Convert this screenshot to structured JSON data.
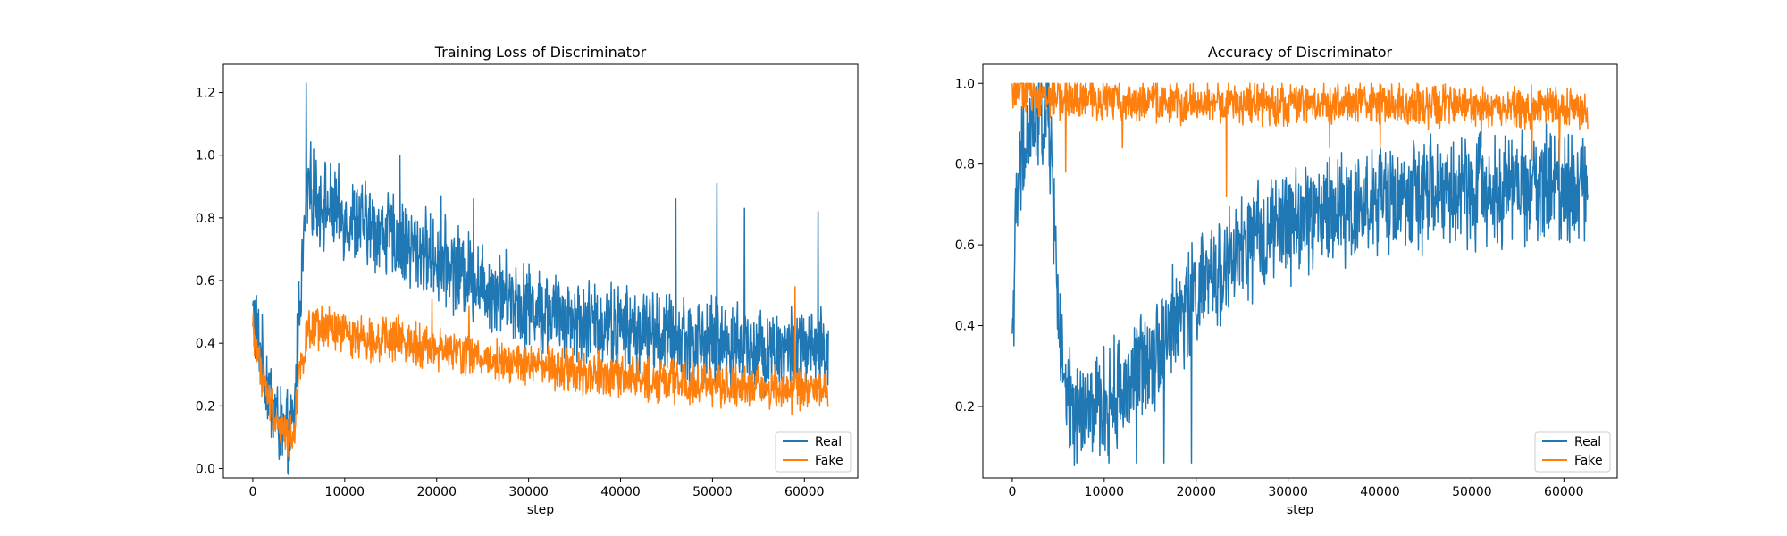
{
  "chart_data": [
    {
      "type": "line",
      "title": "Training Loss of Discriminator",
      "xlabel": "step",
      "ylabel": "",
      "xlim": [
        -3200,
        65800
      ],
      "ylim": [
        -0.03,
        1.29
      ],
      "xticks": [
        0,
        10000,
        20000,
        30000,
        40000,
        50000,
        60000
      ],
      "yticks": [
        0.0,
        0.2,
        0.4,
        0.6,
        0.8,
        1.0,
        1.2
      ],
      "xtick_labels": [
        "0",
        "10000",
        "20000",
        "30000",
        "40000",
        "50000",
        "60000"
      ],
      "ytick_labels": [
        "0.0",
        "0.2",
        "0.4",
        "0.6",
        "0.8",
        "1.0",
        "1.2"
      ],
      "grid": false,
      "legend": "lower-right",
      "series": [
        {
          "name": "Real",
          "color": "#1f77b4",
          "x": [
            0,
            1000,
            2000,
            3000,
            4000,
            4500,
            5000,
            6000,
            7000,
            8000,
            9000,
            10000,
            12000,
            14000,
            16000,
            18000,
            20000,
            22000,
            24000,
            26000,
            28000,
            30000,
            32000,
            34000,
            36000,
            38000,
            40000,
            42000,
            44000,
            46000,
            48000,
            50000,
            52000,
            54000,
            56000,
            58000,
            60000,
            62000,
            62600
          ],
          "values": [
            0.5,
            0.34,
            0.22,
            0.13,
            0.09,
            0.15,
            0.5,
            0.9,
            0.86,
            0.84,
            0.82,
            0.8,
            0.78,
            0.76,
            0.72,
            0.7,
            0.67,
            0.64,
            0.61,
            0.58,
            0.55,
            0.52,
            0.5,
            0.48,
            0.47,
            0.46,
            0.45,
            0.44,
            0.43,
            0.42,
            0.41,
            0.4,
            0.4,
            0.39,
            0.38,
            0.38,
            0.37,
            0.37,
            0.36
          ],
          "noise": 0.08,
          "spikes": [
            [
              5800,
              1.23
            ],
            [
              16000,
              1.0
            ],
            [
              20500,
              0.87
            ],
            [
              24000,
              0.86
            ],
            [
              46000,
              0.86
            ],
            [
              50500,
              0.91
            ],
            [
              53500,
              0.83
            ],
            [
              61500,
              0.82
            ]
          ]
        },
        {
          "name": "Fake",
          "color": "#ff7f0e",
          "x": [
            0,
            1000,
            2000,
            3000,
            4000,
            4500,
            5000,
            6000,
            8000,
            10000,
            12000,
            14000,
            16000,
            18000,
            20000,
            22000,
            24000,
            26000,
            28000,
            30000,
            32000,
            34000,
            36000,
            38000,
            40000,
            42000,
            44000,
            46000,
            48000,
            50000,
            52000,
            54000,
            56000,
            58000,
            60000,
            62000,
            62600
          ],
          "values": [
            0.45,
            0.3,
            0.2,
            0.13,
            0.1,
            0.12,
            0.3,
            0.43,
            0.45,
            0.43,
            0.42,
            0.41,
            0.41,
            0.4,
            0.38,
            0.37,
            0.36,
            0.35,
            0.34,
            0.33,
            0.32,
            0.31,
            0.3,
            0.3,
            0.29,
            0.29,
            0.28,
            0.28,
            0.27,
            0.27,
            0.27,
            0.26,
            0.26,
            0.25,
            0.25,
            0.25,
            0.25
          ],
          "noise": 0.04,
          "spikes": [
            [
              19500,
              0.54
            ],
            [
              23500,
              0.52
            ],
            [
              59000,
              0.58
            ]
          ]
        }
      ]
    },
    {
      "type": "line",
      "title": "Accuracy of Discriminator",
      "xlabel": "step",
      "ylabel": "",
      "xlim": [
        -3200,
        65800
      ],
      "ylim": [
        0.023,
        1.047
      ],
      "xticks": [
        0,
        10000,
        20000,
        30000,
        40000,
        50000,
        60000
      ],
      "yticks": [
        0.2,
        0.4,
        0.6,
        0.8,
        1.0
      ],
      "xtick_labels": [
        "0",
        "10000",
        "20000",
        "30000",
        "40000",
        "50000",
        "60000"
      ],
      "ytick_labels": [
        "0.2",
        "0.4",
        "0.6",
        "0.8",
        "1.0"
      ],
      "grid": false,
      "legend": "lower-right",
      "series": [
        {
          "name": "Real",
          "color": "#1f77b4",
          "x": [
            0,
            500,
            1000,
            2000,
            3000,
            4000,
            4500,
            5000,
            5500,
            6000,
            8000,
            10000,
            12000,
            14000,
            16000,
            18000,
            20000,
            22000,
            24000,
            26000,
            28000,
            30000,
            32000,
            34000,
            36000,
            38000,
            40000,
            42000,
            44000,
            46000,
            48000,
            50000,
            52000,
            54000,
            56000,
            58000,
            60000,
            62000,
            62600
          ],
          "values": [
            0.38,
            0.7,
            0.8,
            0.88,
            0.92,
            0.9,
            0.7,
            0.45,
            0.25,
            0.2,
            0.18,
            0.2,
            0.24,
            0.3,
            0.36,
            0.42,
            0.48,
            0.52,
            0.56,
            0.6,
            0.63,
            0.65,
            0.67,
            0.68,
            0.69,
            0.7,
            0.71,
            0.72,
            0.72,
            0.73,
            0.73,
            0.74,
            0.74,
            0.74,
            0.75,
            0.75,
            0.75,
            0.76,
            0.7
          ],
          "noise": 0.08,
          "spikes": [
            [
              0,
              0.38
            ],
            [
              1200,
              1.0
            ],
            [
              3000,
              1.0
            ],
            [
              4000,
              1.0
            ],
            [
              7000,
              0.06
            ],
            [
              10500,
              0.06
            ],
            [
              13500,
              0.06
            ],
            [
              16500,
              0.06
            ],
            [
              19500,
              0.06
            ]
          ],
          "cap": 1.0
        },
        {
          "name": "Fake",
          "color": "#ff7f0e",
          "x": [
            0,
            5000,
            10000,
            20000,
            30000,
            40000,
            50000,
            60000,
            62600
          ],
          "values": [
            0.99,
            0.96,
            0.96,
            0.95,
            0.95,
            0.95,
            0.94,
            0.94,
            0.94
          ],
          "noise": 0.03,
          "spikes": [
            [
              5800,
              0.78
            ],
            [
              12000,
              0.84
            ],
            [
              23300,
              0.72
            ],
            [
              34500,
              0.84
            ],
            [
              40000,
              0.84
            ],
            [
              51000,
              0.84
            ],
            [
              56500,
              0.81
            ],
            [
              59500,
              0.8
            ]
          ],
          "cap": 1.0
        }
      ]
    }
  ]
}
